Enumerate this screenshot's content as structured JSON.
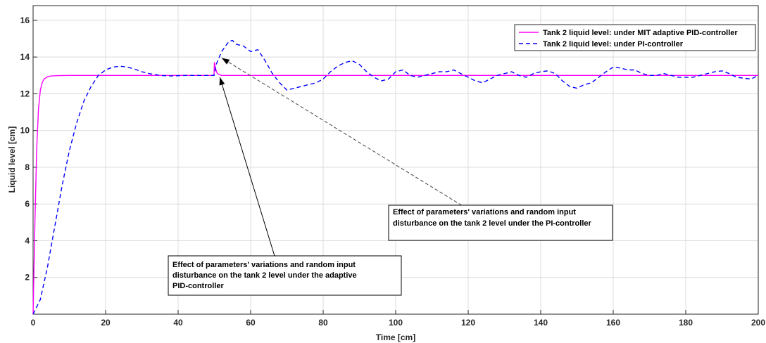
{
  "chart_data": {
    "type": "line",
    "xlabel": "Time [cm]",
    "ylabel": "Liquid level [cm]",
    "xlim": [
      0,
      200
    ],
    "ylim": [
      0,
      16.8
    ],
    "xticks": [
      0,
      20,
      40,
      60,
      80,
      100,
      120,
      140,
      160,
      180,
      200
    ],
    "yticks": [
      2,
      4,
      6,
      8,
      10,
      12,
      14,
      16
    ],
    "grid": true,
    "legend_position": "top-right",
    "series": [
      {
        "name": "Tank 2 liquid level: under MIT adaptive PID-controller",
        "color": "#ff00ff",
        "style": "solid",
        "x": [
          0,
          0.5,
          1,
          1.5,
          2,
          2.5,
          3,
          4,
          5,
          7,
          10,
          20,
          30,
          40,
          49.9,
          50,
          50.3,
          50.7,
          51.2,
          52,
          60,
          80,
          100,
          120,
          140,
          160,
          180,
          200
        ],
        "y": [
          0,
          5.0,
          9.0,
          11.2,
          12.2,
          12.6,
          12.8,
          12.93,
          12.97,
          12.99,
          13.0,
          13.0,
          13.0,
          13.0,
          13.0,
          13.7,
          13.4,
          13.15,
          13.05,
          13.0,
          13.0,
          13.0,
          13.0,
          13.0,
          13.0,
          13.0,
          13.0,
          13.0
        ]
      },
      {
        "name": "Tank 2 liquid level: under PI-controller",
        "color": "#0000ff",
        "style": "dashed",
        "x": [
          0,
          2,
          4,
          6,
          8,
          10,
          12,
          14,
          16,
          18,
          20,
          22,
          24,
          26,
          28,
          30,
          32,
          35,
          38,
          42,
          46,
          49.9,
          50.5,
          52,
          54,
          55,
          56,
          58,
          60,
          62,
          64,
          66,
          68,
          70,
          72,
          74,
          76,
          78,
          80,
          82,
          84,
          86,
          88,
          90,
          92,
          94,
          96,
          98,
          100,
          102,
          104,
          106,
          108,
          110,
          112,
          114,
          116,
          118,
          120,
          122,
          124,
          126,
          128,
          130,
          132,
          134,
          136,
          138,
          140,
          142,
          144,
          146,
          148,
          150,
          152,
          154,
          156,
          158,
          160,
          162,
          164,
          166,
          168,
          170,
          172,
          174,
          176,
          178,
          180,
          182,
          184,
          186,
          188,
          190,
          192,
          194,
          196,
          198,
          200
        ],
        "y": [
          0,
          0.8,
          2.6,
          4.8,
          7.0,
          8.9,
          10.4,
          11.6,
          12.4,
          13.0,
          13.3,
          13.45,
          13.5,
          13.45,
          13.35,
          13.2,
          13.1,
          13.0,
          12.97,
          13.0,
          13.0,
          13.0,
          13.6,
          14.3,
          14.85,
          14.9,
          14.7,
          14.6,
          14.3,
          14.4,
          13.8,
          13.1,
          12.6,
          12.2,
          12.3,
          12.4,
          12.5,
          12.6,
          12.8,
          13.2,
          13.5,
          13.7,
          13.8,
          13.6,
          13.2,
          12.9,
          12.7,
          12.8,
          13.2,
          13.3,
          13.0,
          12.9,
          13.0,
          13.1,
          13.2,
          13.2,
          13.3,
          13.1,
          12.9,
          12.7,
          12.6,
          12.8,
          13.0,
          13.1,
          13.2,
          13.0,
          12.9,
          13.1,
          13.2,
          13.25,
          13.1,
          12.7,
          12.4,
          12.3,
          12.5,
          12.6,
          12.9,
          13.2,
          13.45,
          13.4,
          13.3,
          13.3,
          13.1,
          13.0,
          13.0,
          13.1,
          13.0,
          12.9,
          12.9,
          12.9,
          13.0,
          13.1,
          13.2,
          13.25,
          13.1,
          12.9,
          12.85,
          12.8,
          13.0
        ]
      }
    ],
    "annotations": [
      {
        "lines": [
          "Effect of parameters' variations and random input",
          "disturbance on the tank 2 level under the PI-controller"
        ],
        "arrow_style": "dashed",
        "target": [
          52,
          13.95
        ],
        "from": [
          127.5,
          4.8
        ]
      },
      {
        "lines": [
          "Effect of parameters' variations and random input",
          "disturbance on the tank 2 level under the adaptive",
          "PID-controller"
        ],
        "arrow_style": "solid",
        "target": [
          51.5,
          12.9
        ],
        "from": [
          69.5,
          1.3
        ]
      }
    ]
  }
}
